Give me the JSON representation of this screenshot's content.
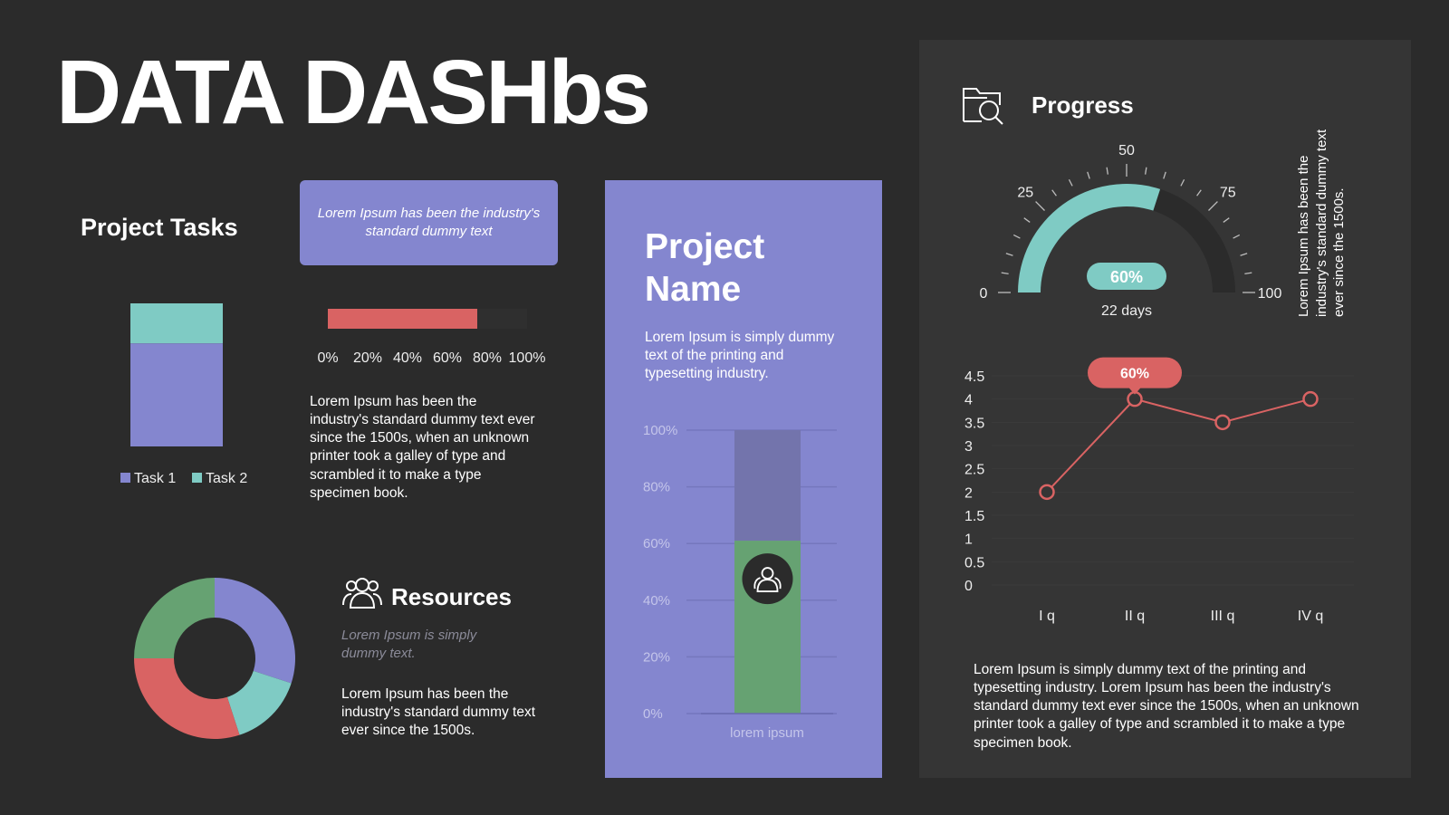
{
  "header": {
    "title": "DATA DASHbs"
  },
  "project_tasks": {
    "heading": "Project Tasks",
    "callout": "Lorem Ipsum has been the industry's standard dummy text",
    "description": "Lorem Ipsum has been the industry's standard dummy text ever since the 1500s, when an unknown printer took a galley of type and scrambled it to make a type specimen book."
  },
  "resources": {
    "heading": "Resources",
    "subtitle": "Lorem Ipsum is simply dummy text.",
    "description": "Lorem Ipsum has been the industry's standard dummy text ever since the 1500s."
  },
  "project": {
    "title": "Project Name",
    "description": "Lorem Ipsum is simply dummy text of the printing and typesetting industry."
  },
  "progress": {
    "heading": "Progress",
    "vertical_text": "Lorem Ipsum has been the industry's standard dummy text ever since the 1500s.",
    "description": "Lorem Ipsum is simply dummy text of the printing and typesetting industry. Lorem Ipsum has been the industry's standard dummy text ever since the 1500s, when an unknown printer took a galley of type and scrambled it to make a type specimen book."
  },
  "colors": {
    "purple": "#8486cf",
    "teal": "#7fcbc4",
    "red": "#d96363",
    "green": "#66a272",
    "background": "#2b2b2b",
    "panel": "#353535"
  },
  "icons": {
    "resources": "people-icon",
    "progress": "search-folder-icon",
    "project_bar": "people-icon"
  },
  "chart_data": [
    {
      "type": "bar",
      "stacked": true,
      "categories": [
        ""
      ],
      "series": [
        {
          "name": "Task 1",
          "values": [
            72
          ]
        },
        {
          "name": "Task 2",
          "values": [
            28
          ]
        }
      ],
      "legend": "bottom"
    },
    {
      "type": "bar",
      "orientation": "horizontal",
      "values": [
        75
      ],
      "x_ticks": [
        "0%",
        "20%",
        "40%",
        "60%",
        "80%",
        "100%"
      ],
      "xlim": [
        0,
        100
      ]
    },
    {
      "type": "pie",
      "donut": true,
      "values": [
        30,
        15,
        30,
        25
      ],
      "colors": [
        "#8486cf",
        "#7fcbc4",
        "#d96363",
        "#66a272"
      ]
    },
    {
      "type": "bar",
      "stacked": true,
      "categories": [
        "lorem ipsum"
      ],
      "values_filled": [
        61
      ],
      "values_remaining": [
        39
      ],
      "y_ticks": [
        "0%",
        "20%",
        "40%",
        "60%",
        "80%",
        "100%"
      ],
      "ylim": [
        0,
        100
      ]
    },
    {
      "type": "gauge",
      "value": 60,
      "range": [
        0,
        100
      ],
      "tick_labels": [
        "0",
        "25",
        "50",
        "75",
        "100"
      ],
      "value_label": "60%",
      "caption": "22 days"
    },
    {
      "type": "line",
      "categories": [
        "I q",
        "II q",
        "III q",
        "IV q"
      ],
      "values": [
        2,
        4,
        3.5,
        4
      ],
      "y_ticks": [
        "0",
        "0.5",
        "1",
        "1.5",
        "2",
        "2.5",
        "3",
        "3.5",
        "4",
        "4.5"
      ],
      "ylim": [
        0,
        4.5
      ],
      "annotation": {
        "category": "II q",
        "label": "60%"
      }
    }
  ]
}
